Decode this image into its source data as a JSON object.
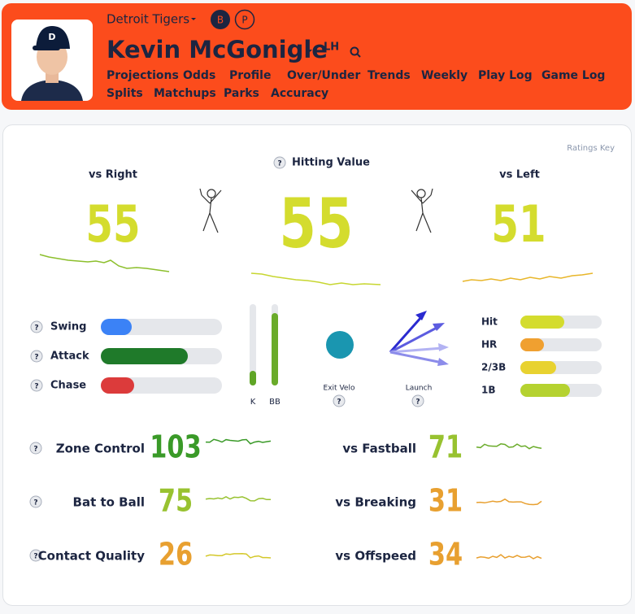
{
  "header": {
    "team": "Detroit Tigers",
    "badges": [
      "B",
      "P"
    ],
    "player": "Kevin McGonigle",
    "hand": "LH",
    "nav": [
      "Projections",
      "Odds",
      "Profile",
      "Over/Under",
      "Trends",
      "Weekly",
      "Play Log",
      "Game Log",
      "Splits",
      "Matchups",
      "Parks",
      "Accuracy"
    ]
  },
  "ratings_key": "Ratings Key",
  "help_icon": "?",
  "hitting_value": {
    "vs_right_label": "vs Right",
    "vs_right": 55,
    "label": "Hitting Value",
    "overall": 55,
    "vs_left_label": "vs Left",
    "vs_left": 51
  },
  "plate_discipline": [
    "Swing",
    "Attack",
    "Chase"
  ],
  "walk_strikeout": [
    "K",
    "BB"
  ],
  "contact": {
    "exit_velo": "Exit Velo",
    "launch": "Launch"
  },
  "hit_types": [
    "Hit",
    "HR",
    "2/3B",
    "1B"
  ],
  "skills": [
    {
      "label": "Zone Control",
      "value": 103
    },
    {
      "label": "Bat to Ball",
      "value": 75
    },
    {
      "label": "Contact Quality",
      "value": 26
    }
  ],
  "pitch_types": [
    {
      "label": "vs Fastball",
      "value": 71
    },
    {
      "label": "vs Breaking",
      "value": 31
    },
    {
      "label": "vs Offspeed",
      "value": 34
    }
  ]
}
